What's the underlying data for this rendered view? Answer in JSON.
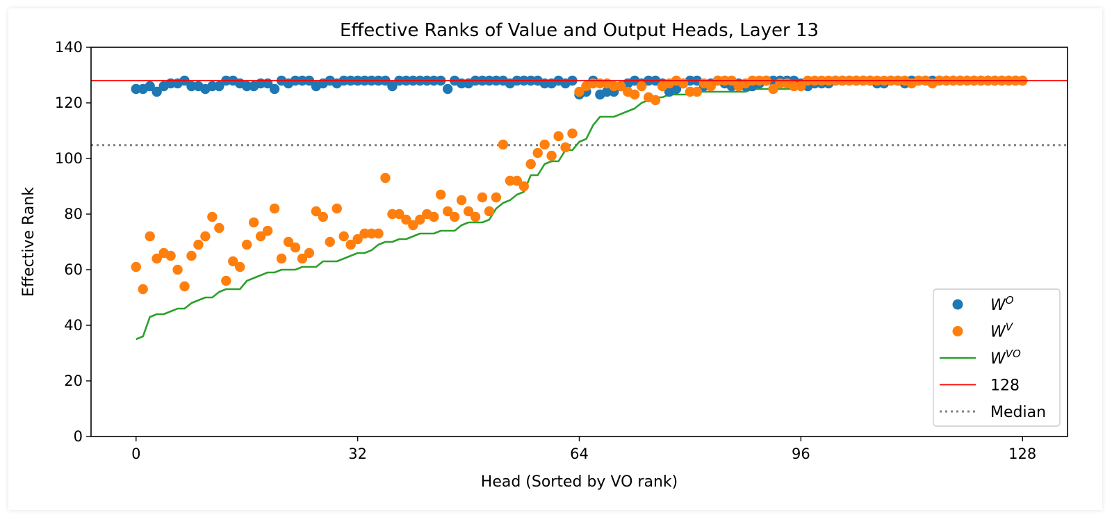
{
  "chart_data": {
    "type": "scatter",
    "title": "Effective Ranks of Value and Output Heads, Layer 13",
    "xlabel": "Head (Sorted by VO rank)",
    "ylabel": "Effective Rank",
    "xlim": [
      -6.5,
      134.5
    ],
    "ylim": [
      0,
      140
    ],
    "xticks": [
      0,
      32,
      64,
      96,
      128
    ],
    "yticks": [
      0,
      20,
      40,
      60,
      80,
      100,
      120,
      140
    ],
    "grid": false,
    "legend_position": "bottom-right",
    "colors": {
      "wo": "#1f77b4",
      "wv": "#ff7f0e",
      "wvo": "#2ca02c",
      "ref": "#ff0000",
      "median": "#808080"
    },
    "reference_lines": [
      {
        "label": "128",
        "y": 128,
        "style": "solid"
      },
      {
        "label": "Median",
        "y": 104.8,
        "style": "dotted"
      }
    ],
    "series": [
      {
        "name": "W^O",
        "legend_base": "W",
        "legend_sup": "O",
        "kind": "scatter",
        "values": [
          125,
          125,
          126,
          124,
          126,
          127,
          127,
          128,
          126,
          126,
          125,
          126,
          126,
          128,
          128,
          127,
          126,
          126,
          127,
          127,
          125,
          128,
          127,
          128,
          128,
          128,
          126,
          127,
          128,
          127,
          128,
          128,
          128,
          128,
          128,
          128,
          128,
          126,
          128,
          128,
          128,
          128,
          128,
          128,
          128,
          125,
          128,
          127,
          127,
          128,
          128,
          128,
          128,
          128,
          127,
          128,
          128,
          128,
          128,
          127,
          127,
          128,
          127,
          128,
          123,
          124,
          128,
          123,
          124,
          124,
          126,
          127,
          128,
          127,
          128,
          128,
          127,
          124,
          125,
          127,
          128,
          128,
          126,
          127,
          128,
          127,
          126,
          127,
          126,
          126,
          127,
          128,
          128,
          128,
          128,
          128,
          127,
          126,
          127,
          127,
          127,
          128,
          128,
          128,
          128,
          128,
          128,
          127,
          127,
          128,
          128,
          127,
          128,
          128,
          128,
          128,
          128,
          128,
          128,
          128,
          128,
          128,
          128,
          128,
          128,
          128,
          128,
          128,
          128
        ]
      },
      {
        "name": "W^V",
        "legend_base": "W",
        "legend_sup": "V",
        "kind": "scatter",
        "values": [
          61,
          53,
          72,
          64,
          66,
          65,
          60,
          54,
          65,
          69,
          72,
          79,
          75,
          56,
          63,
          61,
          69,
          77,
          72,
          74,
          82,
          64,
          70,
          68,
          64,
          66,
          81,
          79,
          70,
          82,
          72,
          69,
          71,
          73,
          73,
          73,
          93,
          80,
          80,
          78,
          76,
          78,
          80,
          79,
          87,
          81,
          79,
          85,
          81,
          79,
          86,
          81,
          86,
          105,
          92,
          92,
          90,
          98,
          102,
          105,
          101,
          108,
          104,
          109,
          124,
          126,
          127,
          127,
          127,
          126,
          126,
          124,
          123,
          126,
          122,
          121,
          126,
          127,
          128,
          127,
          124,
          124,
          127,
          126,
          128,
          128,
          128,
          126,
          127,
          128,
          128,
          128,
          125,
          127,
          127,
          126,
          126,
          128,
          128,
          128,
          128,
          128,
          128,
          128,
          128,
          128,
          128,
          128,
          128,
          128,
          128,
          128,
          127,
          128,
          128,
          127,
          128,
          128,
          128,
          128,
          128,
          128,
          128,
          128,
          128,
          128,
          128,
          128,
          128
        ]
      },
      {
        "name": "W^VO",
        "legend_base": "W",
        "legend_sup": "VO",
        "kind": "line",
        "values": [
          35,
          36,
          43,
          44,
          44,
          45,
          46,
          46,
          48,
          49,
          50,
          50,
          52,
          53,
          53,
          53,
          56,
          57,
          58,
          59,
          59,
          60,
          60,
          60,
          61,
          61,
          61,
          63,
          63,
          63,
          64,
          65,
          66,
          66,
          67,
          69,
          70,
          70,
          71,
          71,
          72,
          73,
          73,
          73,
          74,
          74,
          74,
          76,
          77,
          77,
          77,
          78,
          82,
          84,
          85,
          87,
          88,
          94,
          94,
          98,
          99,
          99,
          103,
          103,
          106,
          107,
          112,
          115,
          115,
          115,
          116,
          117,
          118,
          120,
          121,
          122,
          122,
          123,
          123,
          123,
          123,
          124,
          124,
          124,
          124,
          124,
          124,
          124,
          124,
          125,
          125,
          125,
          125,
          125,
          125,
          125,
          126,
          126,
          127,
          127,
          127,
          127,
          127,
          127,
          127,
          127,
          127,
          127,
          127,
          127,
          127,
          127,
          128,
          128,
          128,
          128,
          128,
          128,
          128,
          128,
          128,
          128,
          128,
          128,
          128,
          128,
          128,
          128,
          128
        ]
      }
    ],
    "legend_extra": [
      "128",
      "Median"
    ]
  }
}
